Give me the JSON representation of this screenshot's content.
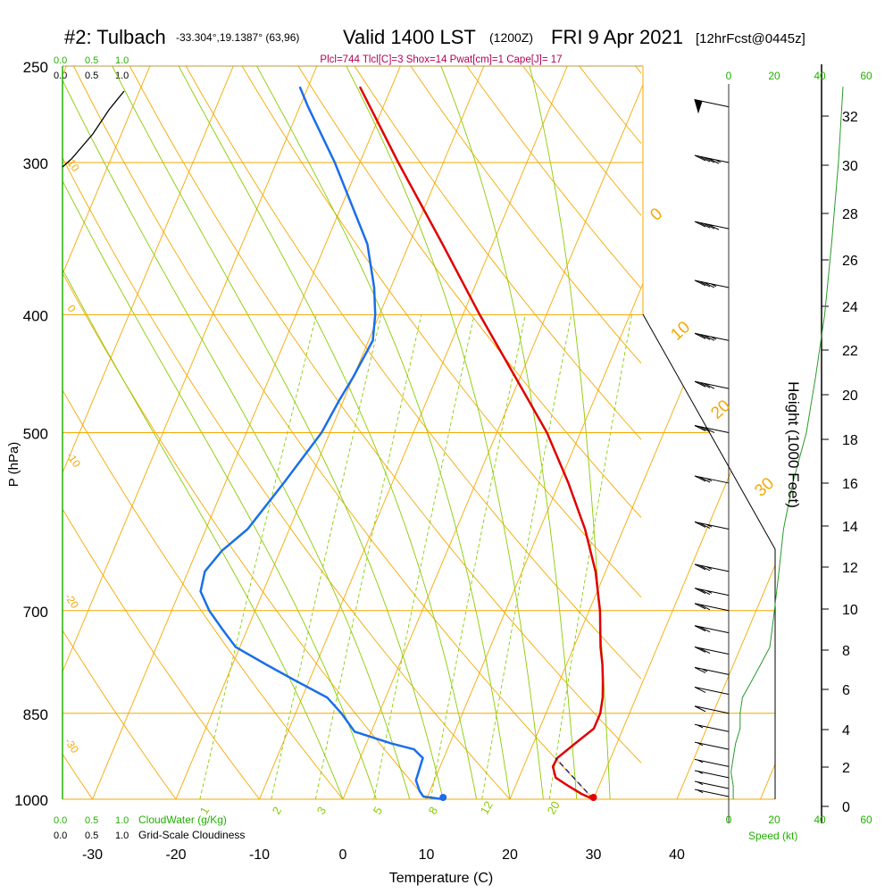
{
  "header": {
    "station": "#2: Tulbach",
    "coords": "-33.304°,19.1387° (63,96)",
    "valid": "Valid 1400 LST",
    "utc": "(1200Z)",
    "date": "FRI 9 Apr 2021",
    "forecast": "[12hrFcst@0445z]",
    "indices": "Plcl=744 Tlcl[C]=3 Shox=14 Pwat[cm]=1 Cape[J]= 17"
  },
  "colors": {
    "grid": "#f5a800",
    "mixing": "#88cc00",
    "temperature": "#e00000",
    "dewpoint": "#1a6ee8",
    "index_text": "#b0005a",
    "scale_green": "#22b000",
    "parcel": "#1a237e"
  },
  "chart_data": {
    "type": "skewt",
    "title": "#2: Tulbach Valid 1400 LST FRI 9 Apr 2021",
    "xlabel": "Temperature (C)",
    "ylabel": "P (hPa)",
    "right_label": "Height (1000 Feet)",
    "temperature_ticks": [
      "-30",
      "-20",
      "-10",
      "0",
      "10",
      "20",
      "30",
      "40"
    ],
    "pressure_levels": [
      {
        "p": 250,
        "label": "250"
      },
      {
        "p": 300,
        "label": "300"
      },
      {
        "p": 400,
        "label": "400"
      },
      {
        "p": 500,
        "label": "500"
      },
      {
        "p": 700,
        "label": "700"
      },
      {
        "p": 850,
        "label": "850"
      },
      {
        "p": 1000,
        "label": "1000"
      }
    ],
    "height_ticks": [
      "0",
      "2",
      "4",
      "6",
      "8",
      "10",
      "12",
      "14",
      "16",
      "18",
      "20",
      "22",
      "24",
      "26",
      "28",
      "30",
      "32"
    ],
    "isotherm_labels": [
      "0",
      "10",
      "20",
      "30"
    ],
    "dry_adiabat_labels": [
      "10",
      "0",
      "-10",
      "-20",
      "-30"
    ],
    "mixing_ratio_labels": [
      "1",
      "2",
      "3",
      "5",
      "8",
      "12",
      "20"
    ],
    "cloud_scale_top": [
      "0.0",
      "0.5",
      "1.0"
    ],
    "cloudwater_scale": [
      "0.0",
      "0.5",
      "1.0"
    ],
    "cloudwater_label": "CloudWater (g/Kg)",
    "cloudiness_scale": [
      "0.0",
      "0.5",
      "1.0"
    ],
    "cloudiness_label": "Grid-Scale Cloudiness",
    "speed_scale": [
      "0",
      "20",
      "40",
      "60"
    ],
    "speed_label": "Speed (kt)",
    "temperature_profile": [
      [
        1000,
        30.0
      ],
      [
        990,
        28.3
      ],
      [
        975,
        26.3
      ],
      [
        960,
        24.4
      ],
      [
        940,
        23.5
      ],
      [
        925,
        23.6
      ],
      [
        900,
        25.0
      ],
      [
        875,
        26.5
      ],
      [
        850,
        26.5
      ],
      [
        825,
        26.0
      ],
      [
        800,
        25.2
      ],
      [
        775,
        24.3
      ],
      [
        750,
        23.2
      ],
      [
        700,
        21.3
      ],
      [
        650,
        18.8
      ],
      [
        600,
        15.4
      ],
      [
        550,
        11.1
      ],
      [
        500,
        6.0
      ],
      [
        450,
        -0.6
      ],
      [
        400,
        -8.0
      ],
      [
        350,
        -16.0
      ],
      [
        300,
        -25.4
      ],
      [
        260,
        -33.8
      ]
    ],
    "dewpoint_profile": [
      [
        1000,
        12.0
      ],
      [
        995,
        9.5
      ],
      [
        985,
        8.8
      ],
      [
        965,
        7.8
      ],
      [
        925,
        7.5
      ],
      [
        910,
        6.0
      ],
      [
        900,
        3.0
      ],
      [
        880,
        -2.0
      ],
      [
        850,
        -4.5
      ],
      [
        825,
        -7.0
      ],
      [
        800,
        -11.5
      ],
      [
        775,
        -16.0
      ],
      [
        750,
        -20.5
      ],
      [
        725,
        -23.0
      ],
      [
        700,
        -25.5
      ],
      [
        675,
        -27.5
      ],
      [
        650,
        -28.0
      ],
      [
        625,
        -27.0
      ],
      [
        600,
        -25.0
      ],
      [
        550,
        -23.0
      ],
      [
        500,
        -21.0
      ],
      [
        470,
        -20.5
      ],
      [
        450,
        -20.0
      ],
      [
        420,
        -19.5
      ],
      [
        400,
        -20.5
      ],
      [
        380,
        -22.0
      ],
      [
        350,
        -25.0
      ],
      [
        300,
        -33.0
      ],
      [
        270,
        -39.0
      ],
      [
        260,
        -41.0
      ]
    ],
    "parcel_path": [
      [
        1000,
        30.0
      ],
      [
        925,
        23.4
      ]
    ],
    "surface_temperature": 30.0,
    "surface_dewpoint": 12.0,
    "wind_speed_profile": [
      [
        1000,
        2
      ],
      [
        975,
        2
      ],
      [
        950,
        1
      ],
      [
        925,
        2
      ],
      [
        900,
        3
      ],
      [
        875,
        5
      ],
      [
        850,
        5
      ],
      [
        825,
        6
      ],
      [
        800,
        10
      ],
      [
        775,
        14
      ],
      [
        750,
        18
      ],
      [
        700,
        20
      ],
      [
        650,
        22
      ],
      [
        600,
        24
      ],
      [
        550,
        28
      ],
      [
        500,
        34
      ],
      [
        450,
        38
      ],
      [
        400,
        42
      ],
      [
        350,
        45
      ],
      [
        300,
        48
      ],
      [
        260,
        50
      ]
    ],
    "wind_barbs": [
      [
        270,
        50
      ],
      [
        300,
        45
      ],
      [
        340,
        40
      ],
      [
        380,
        35
      ],
      [
        420,
        35
      ],
      [
        460,
        30
      ],
      [
        500,
        30
      ],
      [
        550,
        25
      ],
      [
        600,
        25
      ],
      [
        650,
        25
      ],
      [
        680,
        25
      ],
      [
        700,
        20
      ],
      [
        730,
        20
      ],
      [
        760,
        20
      ],
      [
        790,
        15
      ],
      [
        820,
        10
      ],
      [
        850,
        10
      ],
      [
        880,
        5
      ],
      [
        910,
        5
      ],
      [
        940,
        5
      ],
      [
        960,
        5
      ],
      [
        980,
        5
      ],
      [
        995,
        5
      ]
    ]
  }
}
